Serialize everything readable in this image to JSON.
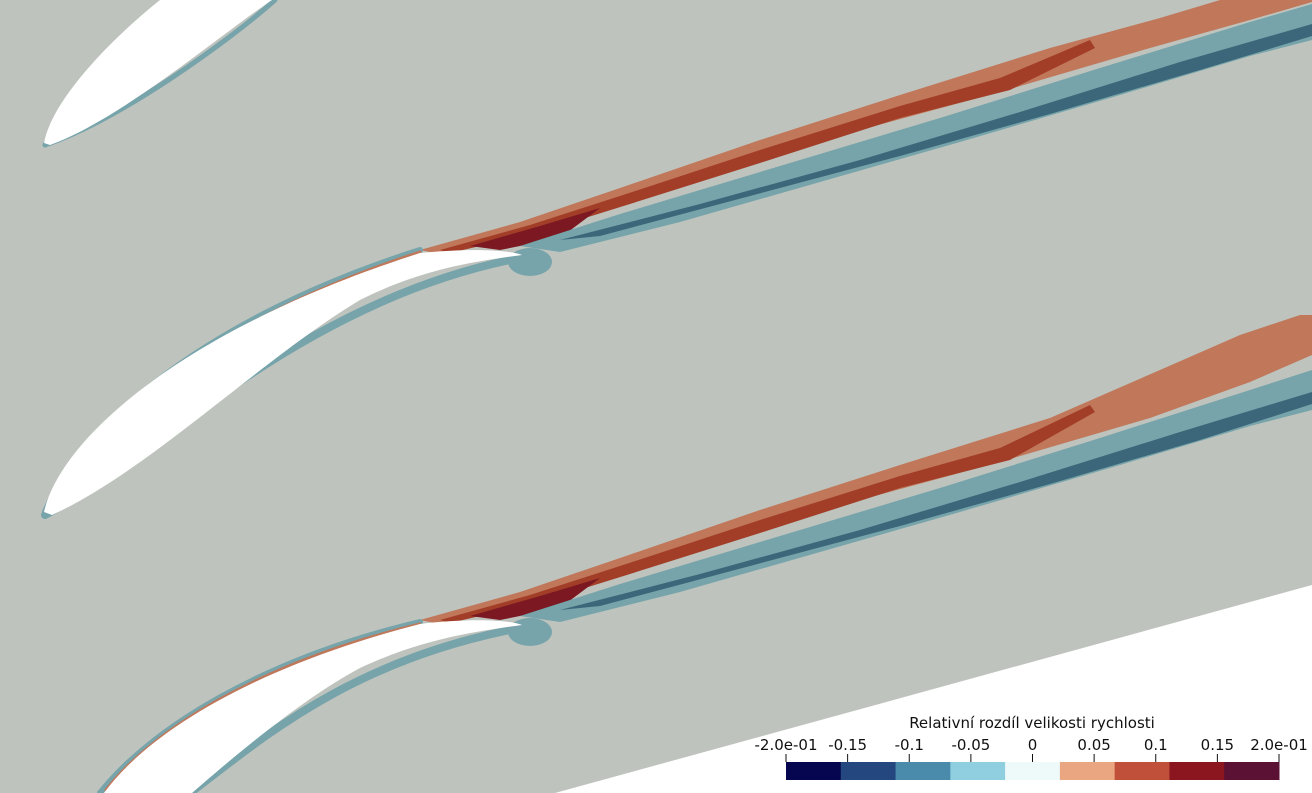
{
  "chart_data": {
    "type": "heatmap",
    "title": "",
    "colorbar": {
      "title": "Relativní rozdíl velikosti rychlosti",
      "range": [
        -0.2,
        0.2
      ],
      "levels": [
        -0.2,
        -0.15,
        -0.1,
        -0.05,
        0,
        0.05,
        0.1,
        0.15,
        0.2
      ],
      "tick_labels": [
        "-2.0e-01",
        "-0.15",
        "-0.1",
        "-0.05",
        "0",
        "0.05",
        "0.1",
        "0.15",
        "2.0e-01"
      ],
      "colors": [
        "#05064f",
        "#24477f",
        "#4a8aab",
        "#8fcfe0",
        "#eefafa",
        "#eaa581",
        "#c0503a",
        "#8b1620",
        "#5a1134"
      ],
      "placement": "bottom-right"
    },
    "background_value": 0,
    "colors": {
      "background": "#bec3bd",
      "blade": "#ffffff",
      "wake_pos_light": "#c0775a",
      "wake_pos_mid": "#a23e28",
      "wake_pos_dark": "#7b1822",
      "wake_neg_light": "#76a4aa",
      "wake_neg_dark": "#3c6679"
    }
  }
}
